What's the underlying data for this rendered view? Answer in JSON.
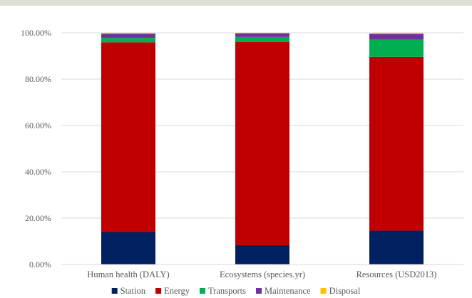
{
  "chart_data": {
    "type": "bar",
    "stacked": true,
    "categories": [
      "Human health (DALY)",
      "Ecosystems (species.yr)",
      "Resources (USD2013)"
    ],
    "series": [
      {
        "name": "Station",
        "color": "#002060",
        "values": [
          14.0,
          8.3,
          14.6
        ]
      },
      {
        "name": "Energy",
        "color": "#c00000",
        "values": [
          81.9,
          87.8,
          75.0
        ]
      },
      {
        "name": "Transports",
        "color": "#00b050",
        "values": [
          1.9,
          2.1,
          7.5
        ]
      },
      {
        "name": "Maintenance",
        "color": "#7030a0",
        "values": [
          1.8,
          1.6,
          2.4
        ]
      },
      {
        "name": "Disposal",
        "color": "#ffc000",
        "values": [
          0.4,
          0.2,
          0.5
        ]
      }
    ],
    "y_ticks": [
      "0.00%",
      "20.00%",
      "40.00%",
      "60.00%",
      "80.00%",
      "100.00%"
    ],
    "ylim": [
      0,
      100
    ],
    "grid": true,
    "legend_position": "bottom"
  }
}
